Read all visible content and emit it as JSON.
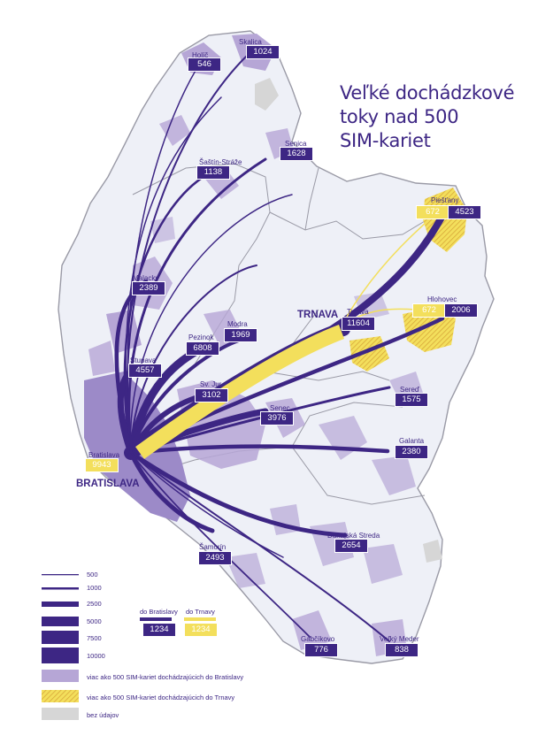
{
  "title": [
    "Veľké dochádzkové",
    "toky nad 500",
    "SIM-kariet"
  ],
  "cities": {
    "bratislava": "BRATISLAVA",
    "trnava": "TRNAVA"
  },
  "places": {
    "holic": {
      "name": "Holíč",
      "value": "546"
    },
    "skalica": {
      "name": "Skalica",
      "value": "1024"
    },
    "senica": {
      "name": "Senica",
      "value": "1628"
    },
    "sastin": {
      "name": "Šaštín-Stráže",
      "value": "1138"
    },
    "malacky": {
      "name": "Malacky",
      "value": "2389"
    },
    "stupava": {
      "name": "Stupava",
      "value": "4557"
    },
    "pezinok": {
      "name": "Pezinok",
      "value": "6808"
    },
    "modra": {
      "name": "Modra",
      "value": "1969"
    },
    "svjur": {
      "name": "Sv. Jur",
      "value": "3102"
    },
    "senec": {
      "name": "Senec",
      "value": "3976"
    },
    "trnava": {
      "name": "Trnava",
      "value": "11604"
    },
    "piestany": {
      "name": "Piešťany",
      "value": "4523",
      "value_trnava": "672"
    },
    "hlohovec": {
      "name": "Hlohovec",
      "value": "2006",
      "value_trnava": "672"
    },
    "sered": {
      "name": "Sereď",
      "value": "1575"
    },
    "galanta": {
      "name": "Galanta",
      "value": "2380"
    },
    "dunajska": {
      "name": "Dunajská Streda",
      "value": "2654"
    },
    "samorin": {
      "name": "Šamorín",
      "value": "2493"
    },
    "gabcikovo": {
      "name": "Gabčíkovo",
      "value": "776"
    },
    "velky": {
      "name": "Veľký Meder",
      "value": "838"
    },
    "bratislava": {
      "name": "Bratislava",
      "value_trnava": "9943"
    }
  },
  "legend": {
    "widths": [
      "500",
      "1000",
      "2500",
      "5000",
      "7500",
      "10000"
    ],
    "to_bratislava": "do Bratislavy",
    "to_trnava": "do Trnavy",
    "sample_value": "1234",
    "patch_bratislava": "viac ako 500 SIM-kariet dochádzajúcich do Bratislavy",
    "patch_trnava": "viac ako 500 SIM-kariet dochádzajúcich do Trnavy",
    "patch_nodata": "bez údajov"
  },
  "colors": {
    "purple": "#3d2684",
    "lavender": "#b6a6d6",
    "yellow": "#f3df5c",
    "hatch": "#d9a83a",
    "nodata": "#d6d6d6",
    "land": "#f1f2f8"
  }
}
